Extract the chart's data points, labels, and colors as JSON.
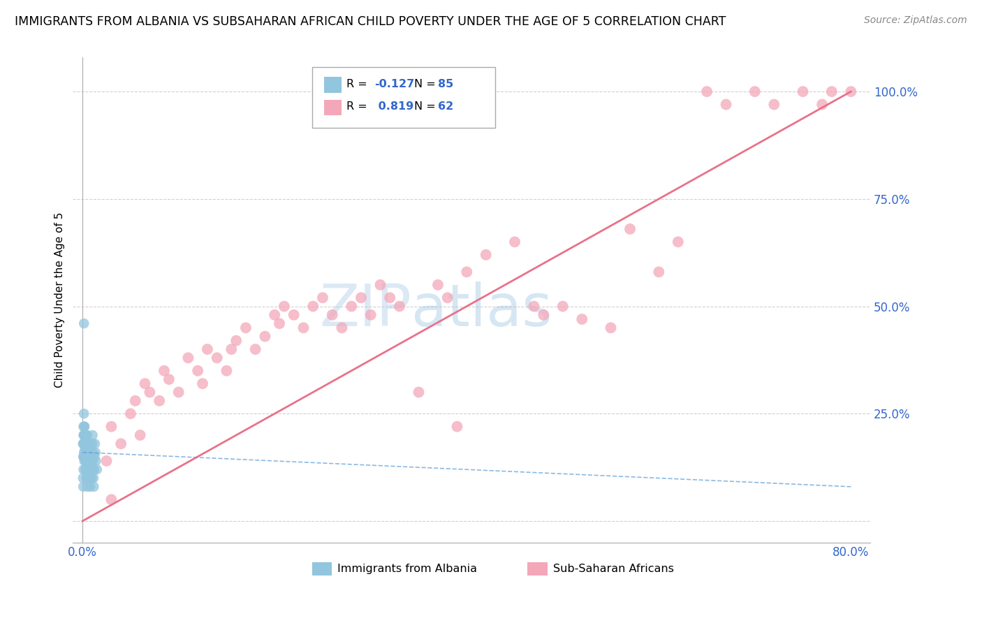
{
  "title": "IMMIGRANTS FROM ALBANIA VS SUBSAHARAN AFRICAN CHILD POVERTY UNDER THE AGE OF 5 CORRELATION CHART",
  "source": "Source: ZipAtlas.com",
  "ylabel": "Child Poverty Under the Age of 5",
  "color_blue": "#92c5de",
  "color_pink": "#f4a7b9",
  "color_blue_line": "#5b9bd5",
  "color_pink_line": "#e8728a",
  "watermark_color": "#c8ddf0",
  "xlim": [
    0,
    80
  ],
  "ylim": [
    0,
    105
  ],
  "blue_x": [
    0.05,
    0.08,
    0.1,
    0.1,
    0.12,
    0.15,
    0.15,
    0.18,
    0.2,
    0.2,
    0.22,
    0.25,
    0.25,
    0.28,
    0.3,
    0.3,
    0.32,
    0.35,
    0.38,
    0.4,
    0.4,
    0.42,
    0.45,
    0.48,
    0.5,
    0.5,
    0.52,
    0.55,
    0.58,
    0.6,
    0.62,
    0.65,
    0.68,
    0.7,
    0.72,
    0.75,
    0.78,
    0.8,
    0.82,
    0.85,
    0.88,
    0.9,
    0.92,
    0.95,
    0.98,
    1.0,
    1.02,
    1.05,
    1.08,
    1.1,
    1.12,
    1.15,
    1.18,
    1.2,
    1.25,
    1.3,
    1.35,
    1.4,
    1.5,
    0.1,
    0.15,
    0.2,
    0.25,
    0.3,
    0.35,
    0.4,
    0.05,
    0.1,
    0.15,
    0.2,
    0.25,
    0.3,
    0.35,
    0.08,
    0.12,
    0.18,
    0.22,
    0.28,
    0.32,
    0.38,
    0.42,
    0.48,
    0.52,
    0.58,
    0.15
  ],
  "blue_y": [
    10,
    8,
    15,
    12,
    18,
    20,
    16,
    14,
    22,
    18,
    15,
    20,
    17,
    12,
    18,
    14,
    16,
    20,
    18,
    15,
    12,
    10,
    14,
    16,
    18,
    20,
    15,
    18,
    16,
    14,
    12,
    15,
    18,
    16,
    14,
    12,
    10,
    8,
    12,
    15,
    18,
    16,
    14,
    12,
    10,
    15,
    18,
    20,
    16,
    14,
    12,
    10,
    8,
    12,
    15,
    18,
    16,
    14,
    12,
    20,
    18,
    22,
    20,
    18,
    16,
    15,
    18,
    22,
    25,
    20,
    18,
    15,
    20,
    15,
    18,
    20,
    15,
    18,
    16,
    14,
    12,
    10,
    8,
    12,
    46
  ],
  "pink_x": [
    2.5,
    3.0,
    4.0,
    5.0,
    5.5,
    6.0,
    6.5,
    7.0,
    8.0,
    8.5,
    9.0,
    10.0,
    11.0,
    12.0,
    12.5,
    13.0,
    14.0,
    15.0,
    15.5,
    16.0,
    17.0,
    18.0,
    19.0,
    20.0,
    20.5,
    21.0,
    22.0,
    23.0,
    24.0,
    25.0,
    26.0,
    27.0,
    28.0,
    29.0,
    30.0,
    31.0,
    32.0,
    33.0,
    35.0,
    37.0,
    38.0,
    39.0,
    40.0,
    42.0,
    45.0,
    47.0,
    48.0,
    50.0,
    52.0,
    55.0,
    57.0,
    60.0,
    62.0,
    65.0,
    67.0,
    70.0,
    72.0,
    75.0,
    77.0,
    78.0,
    80.0,
    3.0
  ],
  "pink_y": [
    14,
    22,
    18,
    25,
    28,
    20,
    32,
    30,
    28,
    35,
    33,
    30,
    38,
    35,
    32,
    40,
    38,
    35,
    40,
    42,
    45,
    40,
    43,
    48,
    46,
    50,
    48,
    45,
    50,
    52,
    48,
    45,
    50,
    52,
    48,
    55,
    52,
    50,
    30,
    55,
    52,
    22,
    58,
    62,
    65,
    50,
    48,
    50,
    47,
    45,
    68,
    58,
    65,
    100,
    97,
    100,
    97,
    100,
    97,
    100,
    100,
    5
  ],
  "pink_line_x": [
    0,
    80
  ],
  "pink_line_y": [
    0,
    100
  ],
  "blue_line_x": [
    0,
    80
  ],
  "blue_line_y": [
    16,
    8
  ]
}
